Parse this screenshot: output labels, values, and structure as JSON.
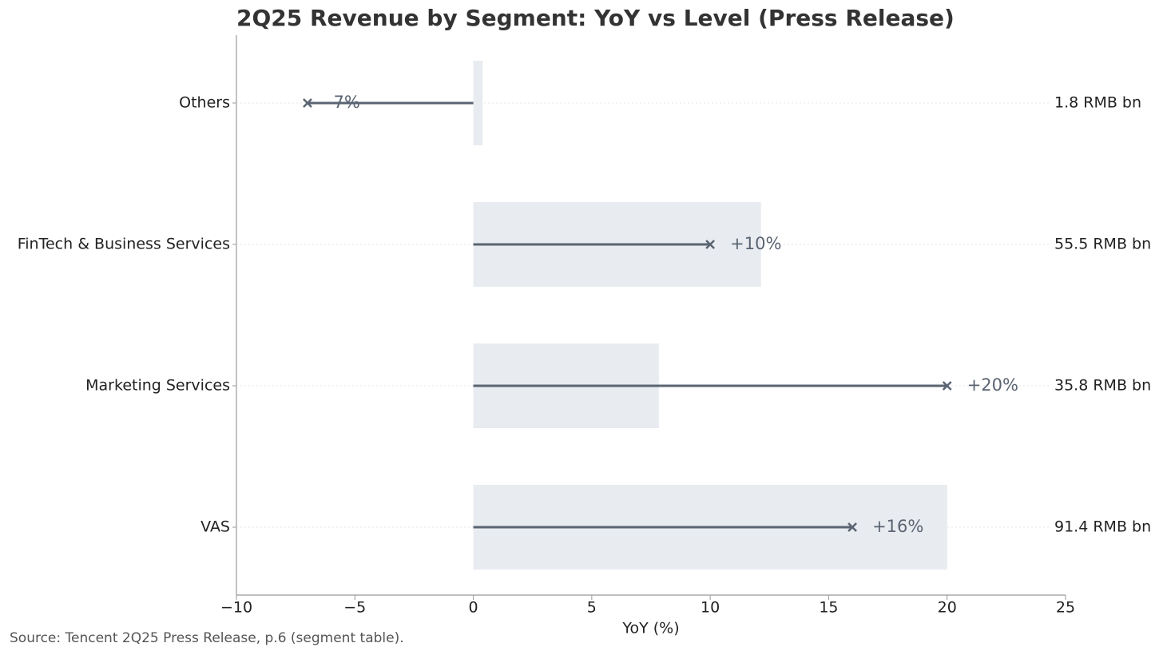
{
  "chart_data": {
    "type": "lollipop",
    "title": "2Q25 Revenue by Segment: YoY vs Level (Press Release)",
    "xlabel": "YoY (%)",
    "source": "Source: Tencent 2Q25 Press Release, p.6 (segment table).",
    "categories": [
      "VAS",
      "Marketing Services",
      "FinTech & Business Services",
      "Others"
    ],
    "values": [
      16,
      20,
      10,
      -7
    ],
    "value_labels": [
      "+16%",
      "+20%",
      "+10%",
      "-7%"
    ],
    "levels": [
      91.4,
      35.8,
      55.5,
      1.8
    ],
    "level_labels": [
      "91.4 RMB bn",
      "35.8 RMB bn",
      "55.5 RMB bn",
      "1.8 RMB bn"
    ],
    "color": "#5a6472",
    "level_color": "#e8ebf0",
    "xlim": [
      -10,
      25
    ],
    "xticks": [
      {
        "value": -10,
        "label": "−10"
      },
      {
        "value": -5,
        "label": "−5"
      },
      0,
      5,
      10,
      15,
      20,
      25
    ],
    "grid": true
  }
}
